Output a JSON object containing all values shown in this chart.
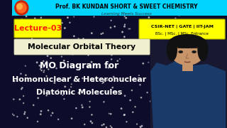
{
  "bg_color": "#0d0d2b",
  "header_bg": "#00d4ff",
  "header_text": "Prof. BK KUNDAN SHORT & SWEET CHEMISTRY",
  "header_text_color": "#000000",
  "subheader_text": "Learning Meets Success",
  "subheader_color": "#cccccc",
  "lecture_box_color": "#ffff00",
  "lecture_text": "Lecture-03",
  "lecture_text_color": "#ff2200",
  "csir_box_color": "#ffff00",
  "csir_line1": "CSIR-NET | GATE | IIT-JAM",
  "csir_line2": "BSc. | MSc. | MSc. Entrance",
  "csir_text_color": "#000000",
  "mot_box_facecolor": "#f0f0d0",
  "mot_text": "Molecular Orbital Theory",
  "mot_text_color": "#000000",
  "main_line1": "MO Diagram for",
  "main_line2": "Homonuclear & Heteronuclear",
  "main_line3": "Diatomic Molecules",
  "main_text_color": "#ffffff",
  "logo_color": "#cc2200",
  "skin_color": "#c8956a",
  "shirt_color": "#1a3a6a",
  "hair_color": "#111111"
}
